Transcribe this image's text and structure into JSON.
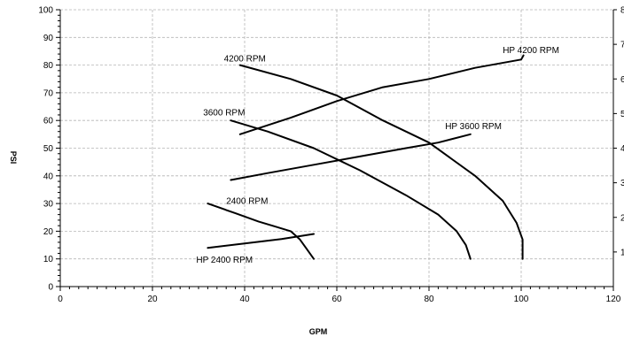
{
  "chart_data": {
    "type": "line",
    "xlabel": "GPM",
    "ylabel": "PSI",
    "xlim": [
      0,
      120
    ],
    "ylim": [
      0,
      100
    ],
    "x_ticks": [
      "0",
      "20",
      "40",
      "60",
      "80",
      "100",
      "120"
    ],
    "y_ticks": [
      "0",
      "10",
      "20",
      "30",
      "40",
      "50",
      "60",
      "70",
      "80",
      "90",
      "100"
    ],
    "y2_ticks": [
      "1",
      "2",
      "3",
      "4",
      "5",
      "6",
      "7",
      "8"
    ],
    "grid": true,
    "series": [
      {
        "name": "4200 RPM",
        "x": [
          39,
          50,
          60,
          70,
          80,
          90,
          96,
          99,
          100.3,
          100.3
        ],
        "y": [
          80,
          75,
          69,
          60,
          52,
          40,
          31,
          23,
          17,
          10
        ]
      },
      {
        "name": "3600 RPM",
        "x": [
          37,
          45,
          55,
          65,
          75,
          82,
          86,
          88,
          89
        ],
        "y": [
          60,
          56,
          50,
          42,
          33,
          26,
          20,
          15,
          10
        ]
      },
      {
        "name": "2400 RPM",
        "x": [
          32,
          38,
          43,
          47,
          50,
          52,
          53.5,
          55
        ],
        "y": [
          30,
          26.5,
          23.5,
          21.5,
          20,
          17,
          13.5,
          10
        ]
      },
      {
        "name": "HP 4200 RPM",
        "x": [
          39,
          50,
          60,
          70,
          80,
          90,
          100,
          100.5
        ],
        "y": [
          55,
          61,
          67,
          72,
          75,
          79,
          82,
          83.5
        ]
      },
      {
        "name": "HP 3600 RPM",
        "x": [
          37,
          45,
          55,
          65,
          75,
          82,
          89
        ],
        "y": [
          38.5,
          41,
          44,
          47,
          50,
          52,
          55
        ]
      },
      {
        "name": "HP 2400 RPM",
        "x": [
          32,
          40,
          48,
          55
        ],
        "y": [
          14,
          15.6,
          17.2,
          19
        ]
      }
    ],
    "annotations": [
      {
        "text": "4200 RPM",
        "x": 35.5,
        "y": 82.5
      },
      {
        "text": "3600 RPM",
        "x": 31,
        "y": 63
      },
      {
        "text": "2400 RPM",
        "x": 36,
        "y": 31
      },
      {
        "text": "HP 4200 RPM",
        "x": 96,
        "y": 85.5
      },
      {
        "text": "HP 3600 RPM",
        "x": 83.5,
        "y": 58
      },
      {
        "text": "HP 2400 RPM",
        "x": 29.5,
        "y": 9.7
      }
    ]
  }
}
